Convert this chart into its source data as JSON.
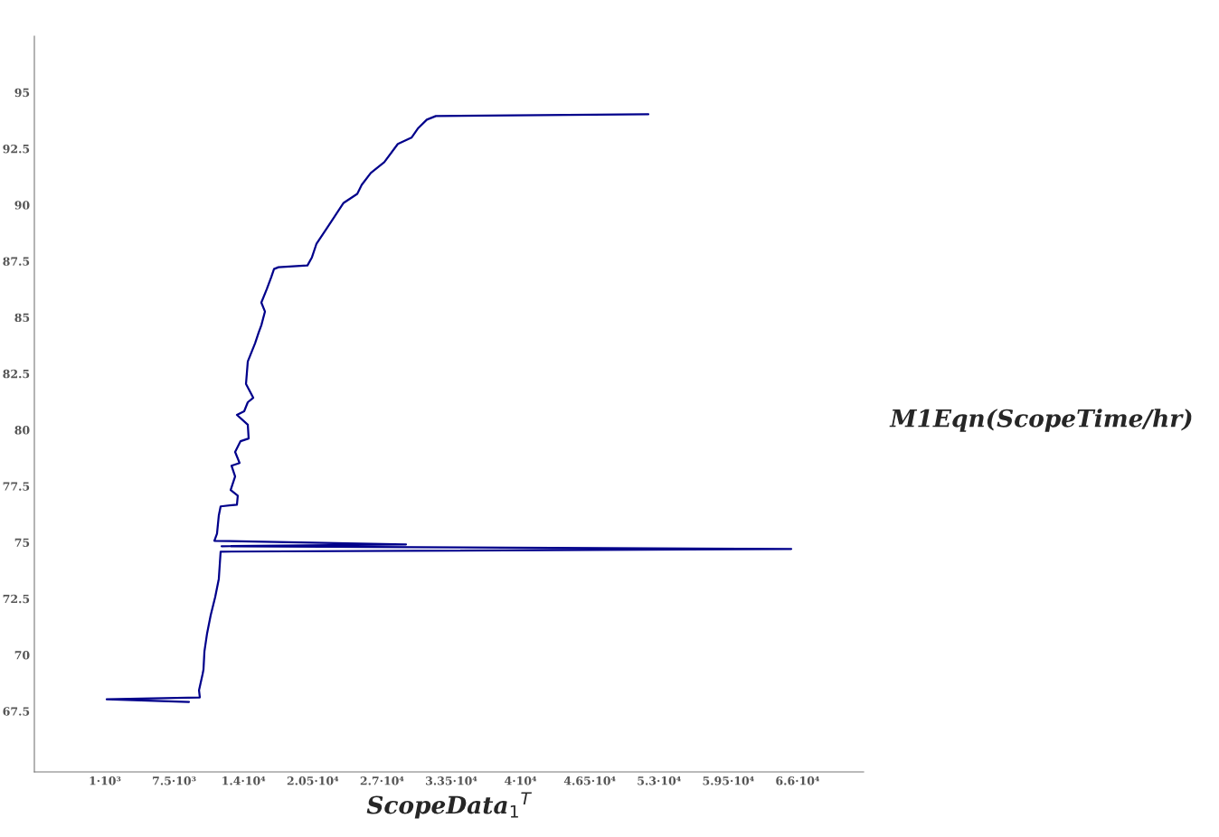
{
  "chart_data": {
    "type": "line",
    "xlabel": "ScopeData$_{1}$$^{T}$",
    "ylabel": "M1Eqn(ScopeTime/hr)",
    "xlim": [
      -5620,
      72200
    ],
    "ylim": [
      64.8,
      97.5
    ],
    "xticks": [
      {
        "value": 1000,
        "label": "1·10³"
      },
      {
        "value": 7500,
        "label": "7.5·10³"
      },
      {
        "value": 14000,
        "label": "1.4·10⁴"
      },
      {
        "value": 20500,
        "label": "2.05·10⁴"
      },
      {
        "value": 27000,
        "label": "2.7·10⁴"
      },
      {
        "value": 33500,
        "label": "3.35·10⁴"
      },
      {
        "value": 40000,
        "label": "4·10⁴"
      },
      {
        "value": 46500,
        "label": "4.65·10⁴"
      },
      {
        "value": 53000,
        "label": "5.3·10⁴"
      },
      {
        "value": 59500,
        "label": "5.95·10⁴"
      },
      {
        "value": 66000,
        "label": "6.6·10⁴"
      }
    ],
    "yticks": [
      67.5,
      70,
      72.5,
      75,
      77.5,
      80,
      82.5,
      85,
      87.5,
      90,
      92.5,
      95
    ],
    "grid": false,
    "marker": "none",
    "line_style": "solid",
    "series": [
      {
        "color": "#00008b",
        "x": [
          8890,
          1170,
          9910,
          9830,
          10170,
          10250,
          10340,
          10590,
          10930,
          11350,
          11690,
          11860,
          65410,
          11950,
          29260,
          11270,
          11520,
          11690,
          11860,
          13390,
          13470,
          12800,
          13220,
          12880,
          13640,
          13220,
          13730,
          14490,
          14410,
          13390,
          14070,
          14410,
          14920,
          14240,
          14410,
          15090,
          15430,
          15680,
          16020,
          15680,
          16190,
          16610,
          16870,
          17290,
          20010,
          20430,
          20860,
          21710,
          22550,
          23400,
          24680,
          25100,
          25950,
          27220,
          28490,
          29770,
          30360,
          31210,
          32060,
          52000
        ],
        "values": [
          67.91,
          68.03,
          68.11,
          68.43,
          69.15,
          69.35,
          70.16,
          70.96,
          71.77,
          72.57,
          73.38,
          74.59,
          74.71,
          74.83,
          74.91,
          75.07,
          75.39,
          76.2,
          76.6,
          76.68,
          77.08,
          77.33,
          77.93,
          78.41,
          78.53,
          79.02,
          79.5,
          79.62,
          80.23,
          80.67,
          80.83,
          81.23,
          81.43,
          82.04,
          83.04,
          83.85,
          84.33,
          84.65,
          85.26,
          85.66,
          86.26,
          86.79,
          87.15,
          87.23,
          87.31,
          87.67,
          88.28,
          88.88,
          89.48,
          90.09,
          90.49,
          90.89,
          91.42,
          91.9,
          92.71,
          92.99,
          93.39,
          93.79,
          93.95,
          94.03
        ]
      }
    ]
  }
}
